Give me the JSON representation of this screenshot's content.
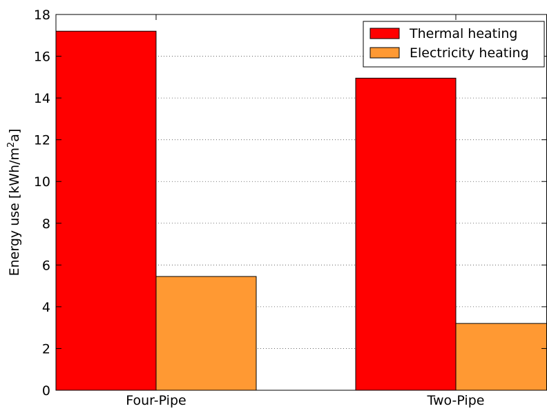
{
  "chart_data": {
    "type": "bar",
    "categories": [
      "Four-Pipe",
      "Two-Pipe"
    ],
    "series": [
      {
        "name": "Thermal heating",
        "values": [
          17.2,
          14.95
        ],
        "color": "#ff0000"
      },
      {
        "name": "Electricity heating",
        "values": [
          5.45,
          3.2
        ],
        "color": "#ff9933"
      }
    ],
    "ylabel_prefix": "Energy use [kWh/m",
    "ylabel_sup": "2",
    "ylabel_suffix": "a]",
    "xlabel": "",
    "ylim": [
      0,
      18
    ],
    "yticks": [
      0,
      2,
      4,
      6,
      8,
      10,
      12,
      14,
      16,
      18
    ],
    "grid": "horizontal dotted",
    "legend_position": "top-right"
  }
}
